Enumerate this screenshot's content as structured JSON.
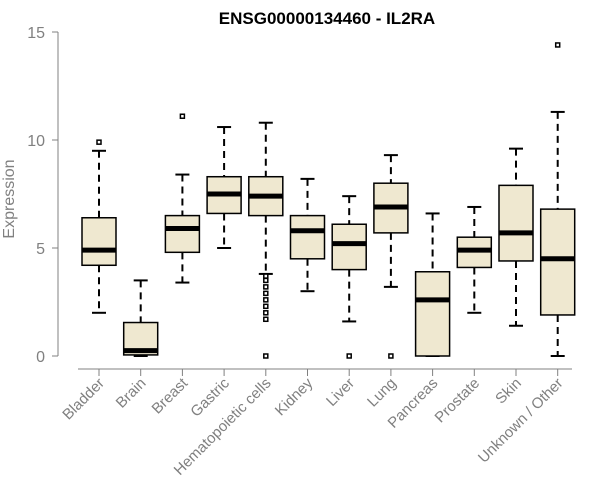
{
  "chart_data": {
    "type": "box",
    "title": "ENSG00000134460 - IL2RA",
    "ylabel": "Expression",
    "xlabel": "",
    "ylim": [
      0,
      15
    ],
    "yticks": [
      0,
      5,
      10,
      15
    ],
    "grid": false,
    "colors": {
      "box_fill": "#efe8d0",
      "stroke": "#000000",
      "axis": "#808080"
    },
    "categories": [
      "Bladder",
      "Brain",
      "Breast",
      "Gastric",
      "Hematopoietic cells",
      "Kidney",
      "Liver",
      "Lung",
      "Pancreas",
      "Prostate",
      "Skin",
      "Unknown / Other"
    ],
    "boxes": [
      {
        "category": "Bladder",
        "whisker_low": 2.0,
        "q1": 4.2,
        "median": 4.9,
        "q3": 6.4,
        "whisker_high": 9.5,
        "outliers": [
          9.9
        ]
      },
      {
        "category": "Brain",
        "whisker_low": 0.0,
        "q1": 0.05,
        "median": 0.25,
        "q3": 1.55,
        "whisker_high": 3.5,
        "outliers": []
      },
      {
        "category": "Breast",
        "whisker_low": 3.4,
        "q1": 4.8,
        "median": 5.9,
        "q3": 6.5,
        "whisker_high": 8.4,
        "outliers": [
          11.1
        ]
      },
      {
        "category": "Gastric",
        "whisker_low": 5.0,
        "q1": 6.6,
        "median": 7.5,
        "q3": 8.3,
        "whisker_high": 10.6,
        "outliers": []
      },
      {
        "category": "Hematopoietic cells",
        "whisker_low": 3.8,
        "q1": 6.5,
        "median": 7.4,
        "q3": 8.3,
        "whisker_high": 10.8,
        "outliers": [
          0.0,
          1.7,
          2.0,
          2.3,
          2.6,
          2.9,
          3.2,
          3.5,
          3.7
        ]
      },
      {
        "category": "Kidney",
        "whisker_low": 3.0,
        "q1": 4.5,
        "median": 5.8,
        "q3": 6.5,
        "whisker_high": 8.2,
        "outliers": []
      },
      {
        "category": "Liver",
        "whisker_low": 1.6,
        "q1": 4.0,
        "median": 5.2,
        "q3": 6.1,
        "whisker_high": 7.4,
        "outliers": [
          0.0
        ]
      },
      {
        "category": "Lung",
        "whisker_low": 3.2,
        "q1": 5.7,
        "median": 6.9,
        "q3": 8.0,
        "whisker_high": 9.3,
        "outliers": [
          0.0
        ]
      },
      {
        "category": "Pancreas",
        "whisker_low": 0.0,
        "q1": 0.0,
        "median": 2.6,
        "q3": 3.9,
        "whisker_high": 6.6,
        "outliers": []
      },
      {
        "category": "Prostate",
        "whisker_low": 2.0,
        "q1": 4.1,
        "median": 4.9,
        "q3": 5.5,
        "whisker_high": 6.9,
        "outliers": []
      },
      {
        "category": "Skin",
        "whisker_low": 1.4,
        "q1": 4.4,
        "median": 5.7,
        "q3": 7.9,
        "whisker_high": 9.6,
        "outliers": []
      },
      {
        "category": "Unknown / Other",
        "whisker_low": 0.0,
        "q1": 1.9,
        "median": 4.5,
        "q3": 6.8,
        "whisker_high": 11.3,
        "outliers": [
          14.4
        ]
      }
    ]
  }
}
